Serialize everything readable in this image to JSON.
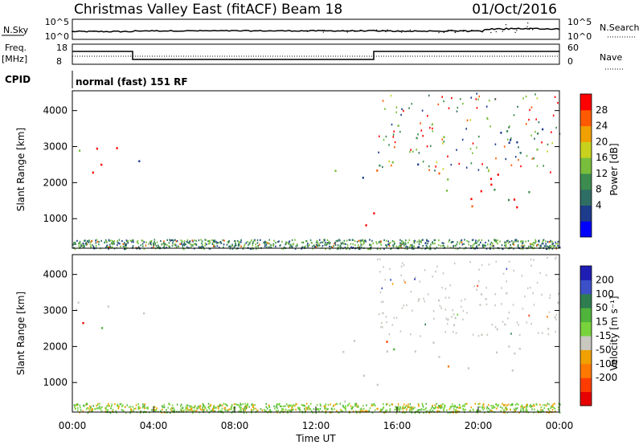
{
  "header": {
    "title": "Christmas Valley East (fitACF)",
    "beam": "Beam 18",
    "date": "01/Oct/2016"
  },
  "panels": {
    "nsky": {
      "label": "N.Sky",
      "left_ticks": [
        "10^5",
        "10^0"
      ],
      "right_ticks": [
        "10^5",
        "10^0"
      ],
      "right_label": "N.Search"
    },
    "freq": {
      "label_top": "Freq.",
      "label_bottom": "[MHz]",
      "left_ticks": [
        "18",
        "8"
      ],
      "right_ticks": [
        "60",
        "0"
      ],
      "right_label": "Nave"
    },
    "cpid": {
      "label": "CPID",
      "program": "normal (fast) 151 RF"
    }
  },
  "colors": {
    "background": "#ffffff",
    "ground_scatter": "#c8c8c0",
    "power_scale": [
      "#0000ff",
      "#1e3c8c",
      "#2e6e64",
      "#3c8c50",
      "#78be3c",
      "#c8d21e",
      "#f0a000",
      "#ff5a00",
      "#ff0000"
    ],
    "velocity_scale": [
      "#1e1eb4",
      "#3c50c8",
      "#2e7d50",
      "#50b43c",
      "#78d23c",
      "#c8c8c0",
      "#f0a000",
      "#ff7800",
      "#ff3c00",
      "#e60000"
    ]
  },
  "chart_data": [
    {
      "type": "heatmap",
      "name": "power",
      "xlabel": "",
      "ylabel": "Slant Range [km]",
      "y_ticks": [
        "1000",
        "2000",
        "3000",
        "4000"
      ],
      "colorbar_label": "Power [dB]",
      "colorbar_ticks": [
        "4",
        "8",
        "12",
        "16",
        "20",
        "24",
        "28"
      ],
      "xlim": [
        "00:00",
        "24:00"
      ],
      "ylim": [
        180,
        4550
      ],
      "blobs": [
        {
          "t0": 0.05,
          "t1": 2.3,
          "r0": 1900,
          "r1": 3400,
          "level": "high"
        },
        {
          "t0": 3.1,
          "t1": 3.6,
          "r0": 2200,
          "r1": 3050,
          "level": "low"
        },
        {
          "t0": 13.3,
          "t1": 15.0,
          "r0": 400,
          "r1": 1350,
          "level": "high"
        },
        {
          "t0": 12.9,
          "t1": 15.0,
          "r0": 1300,
          "r1": 2400,
          "level": "mid"
        },
        {
          "t0": 15.0,
          "t1": 23.8,
          "r0": 1300,
          "r1": 2400,
          "level": "high"
        },
        {
          "t0": 15.0,
          "t1": 23.9,
          "r0": 2500,
          "r1": 3700,
          "level": "low"
        }
      ]
    },
    {
      "type": "heatmap",
      "name": "velocity",
      "xlabel": "Time UT",
      "ylabel": "Slant Range [km]",
      "y_ticks": [
        "1000",
        "2000",
        "3000",
        "4000"
      ],
      "x_ticks": [
        "00:00",
        "04:00",
        "08:00",
        "12:00",
        "16:00",
        "20:00",
        "00:00"
      ],
      "colorbar_label": "Velocity [m s⁻¹]",
      "colorbar_ticks": [
        "200",
        "100",
        "50",
        "15",
        "-15",
        "-50",
        "-100",
        "-200"
      ],
      "xlim": [
        "00:00",
        "24:00"
      ],
      "ylim": [
        180,
        4550
      ],
      "blobs": [
        {
          "t0": 0.05,
          "t1": 2.3,
          "r0": 1900,
          "r1": 3400,
          "level": "ground"
        },
        {
          "t0": 3.1,
          "t1": 3.6,
          "r0": 2200,
          "r1": 3050,
          "level": "ground"
        },
        {
          "t0": 13.3,
          "t1": 15.0,
          "r0": 450,
          "r1": 2400,
          "level": "ground"
        },
        {
          "t0": 15.0,
          "t1": 23.9,
          "r0": 1300,
          "r1": 2400,
          "level": "ground"
        },
        {
          "t0": 15.0,
          "t1": 23.9,
          "r0": 2500,
          "r1": 3700,
          "level": "ground"
        }
      ]
    }
  ]
}
